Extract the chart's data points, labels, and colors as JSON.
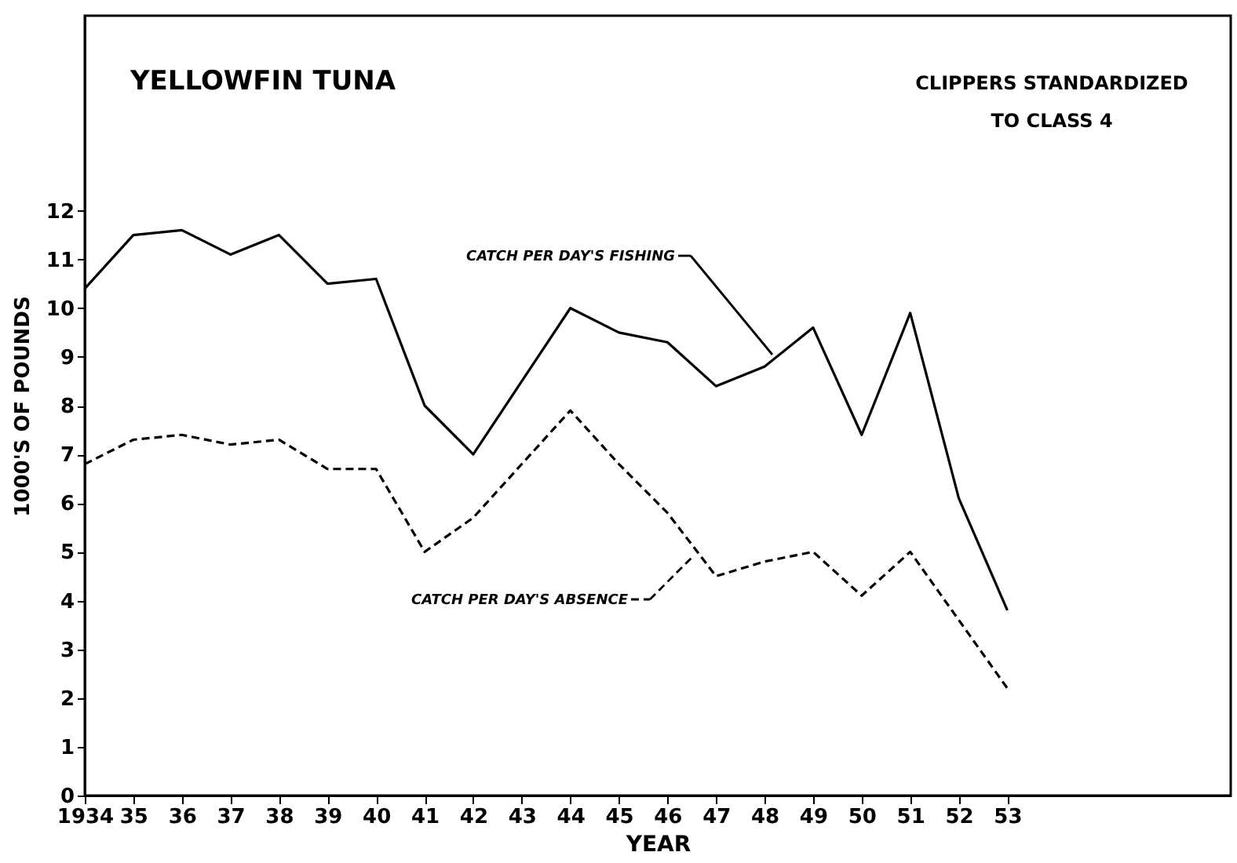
{
  "chart_data": {
    "type": "line",
    "title": "YELLOWFIN TUNA",
    "subtitle": "CLIPPERS STANDARDIZED\nTO CLASS 4",
    "xlabel": "YEAR",
    "ylabel": "1000'S OF POUNDS",
    "x": [
      1934,
      1935,
      1936,
      1937,
      1938,
      1939,
      1940,
      1941,
      1942,
      1943,
      1944,
      1945,
      1946,
      1947,
      1948,
      1949,
      1950,
      1951,
      1952,
      1953
    ],
    "series": [
      {
        "name": "CATCH PER DAY'S FISHING",
        "color": "#000000",
        "line_style": "solid",
        "values": [
          10.4,
          11.5,
          11.6,
          11.1,
          11.5,
          10.5,
          10.6,
          8.0,
          7.0,
          8.5,
          10.0,
          9.5,
          9.3,
          8.4,
          8.8,
          9.6,
          7.4,
          9.9,
          6.1,
          3.8
        ]
      },
      {
        "name": "CATCH PER DAY'S ABSENCE",
        "color": "#000000",
        "line_style": "dashed",
        "values": [
          6.8,
          7.3,
          7.4,
          7.2,
          7.3,
          6.7,
          6.7,
          5.0,
          5.7,
          6.8,
          7.9,
          6.8,
          5.8,
          4.5,
          4.8,
          5.0,
          4.1,
          5.0,
          3.6,
          2.2
        ]
      }
    ],
    "xlim": [
      1934,
      1957.6
    ],
    "ylim": [
      0,
      16
    ],
    "xticks": [
      1934,
      {
        "value": 1935,
        "label": "35"
      },
      {
        "value": 1936,
        "label": "36"
      },
      {
        "value": 1937,
        "label": "37"
      },
      {
        "value": 1938,
        "label": "38"
      },
      {
        "value": 1939,
        "label": "39"
      },
      {
        "value": 1940,
        "label": "40"
      },
      {
        "value": 1941,
        "label": "41"
      },
      {
        "value": 1942,
        "label": "42"
      },
      {
        "value": 1943,
        "label": "43"
      },
      {
        "value": 1944,
        "label": "44"
      },
      {
        "value": 1945,
        "label": "45"
      },
      {
        "value": 1946,
        "label": "46"
      },
      {
        "value": 1947,
        "label": "47"
      },
      {
        "value": 1948,
        "label": "48"
      },
      {
        "value": 1949,
        "label": "49"
      },
      {
        "value": 1950,
        "label": "50"
      },
      {
        "value": 1951,
        "label": "51"
      },
      {
        "value": 1952,
        "label": "52"
      },
      {
        "value": 1953,
        "label": "53"
      }
    ],
    "yticks": [
      0,
      1,
      2,
      3,
      4,
      5,
      6,
      7,
      8,
      9,
      10,
      11,
      12
    ],
    "grid": false,
    "legend": "center",
    "marker": "none"
  }
}
